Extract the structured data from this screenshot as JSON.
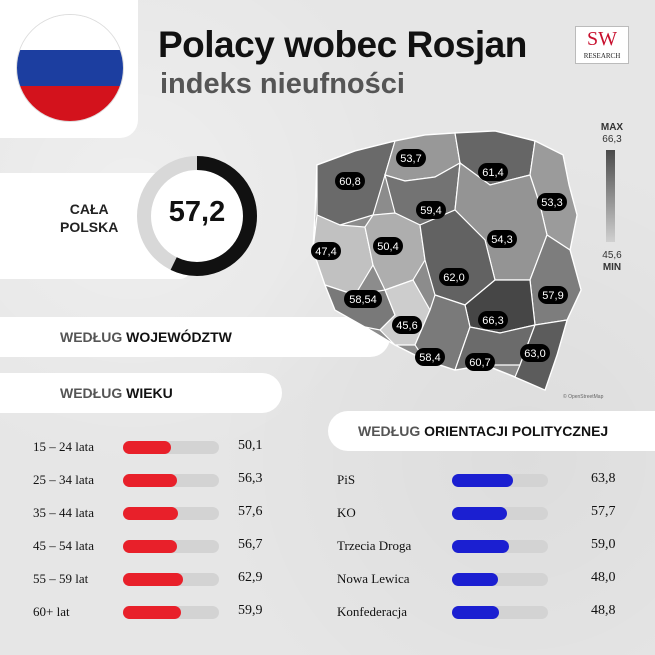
{
  "header": {
    "title": "Polacy wobec Rosjan",
    "subtitle": "indeks nieufności"
  },
  "logo": {
    "sw": "SW",
    "sub": "RESEARCH"
  },
  "colors": {
    "flag_white": "#ffffff",
    "flag_blue": "#1c3ea0",
    "flag_red": "#d3121c",
    "age_bar": "#e8202a",
    "politics_bar": "#1b1fd1",
    "track": "#d3d3d3",
    "gauge_dark": "#111111",
    "gauge_light": "#d8d8d8"
  },
  "national": {
    "label_line1": "CAŁA",
    "label_line2": "POLSKA",
    "value": "57,2",
    "value_num": 57.2
  },
  "sections": {
    "woj_prefix": "WEDŁUG",
    "woj_bold": "WOJEWÓDZTW",
    "age_prefix": "WEDŁUG",
    "age_bold": "WIEKU",
    "pol_prefix": "WEDŁUG",
    "pol_bold": "ORIENTACJI POLITYCZNEJ"
  },
  "legend": {
    "max_label": "MAX",
    "max_value": "66,3",
    "min_value": "45,6",
    "min_label": "MIN"
  },
  "map_credit": "© OpenStreetMap",
  "chart_data": [
    {
      "type": "bar",
      "title": "WEDŁUG WIEKU",
      "categories": [
        "15 – 24 lata",
        "25 – 34 lata",
        "35 – 44 lata",
        "45 – 54 lata",
        "55 – 59 lat",
        "60+ lat"
      ],
      "values": [
        50.1,
        56.3,
        57.6,
        56.7,
        62.9,
        59.9
      ],
      "labels": [
        "50,1",
        "56,3",
        "57,6",
        "56,7",
        "62,9",
        "59,9"
      ],
      "xlim": [
        0,
        100
      ]
    },
    {
      "type": "bar",
      "title": "WEDŁUG ORIENTACJI POLITYCZNEJ",
      "categories": [
        "PiS",
        "KO",
        "Trzecia Droga",
        "Nowa Lewica",
        "Konfederacja"
      ],
      "values": [
        63.8,
        57.7,
        59.0,
        48.0,
        48.8
      ],
      "labels": [
        "63,8",
        "57,7",
        "59,0",
        "48,0",
        "48,8"
      ],
      "xlim": [
        0,
        100
      ]
    },
    {
      "type": "heatmap",
      "title": "WEDŁUG WOJEWÓDZTW",
      "scale_min": 45.6,
      "scale_max": 66.3,
      "regions": [
        {
          "name": "zachodniopomorskie",
          "value": 60.8,
          "label": "60,8"
        },
        {
          "name": "pomorskie",
          "value": 53.7,
          "label": "53,7"
        },
        {
          "name": "warmińsko-mazurskie",
          "value": 61.4,
          "label": "61,4"
        },
        {
          "name": "podlaskie",
          "value": 53.3,
          "label": "53,3"
        },
        {
          "name": "kujawsko-pomorskie",
          "value": 59.4,
          "label": "59,4"
        },
        {
          "name": "lubuskie",
          "value": 47.4,
          "label": "47,4"
        },
        {
          "name": "wielkopolskie",
          "value": 50.4,
          "label": "50,4"
        },
        {
          "name": "mazowieckie",
          "value": 54.3,
          "label": "54,3"
        },
        {
          "name": "łódzkie",
          "value": 62.0,
          "label": "62,0"
        },
        {
          "name": "dolnośląskie",
          "value": 58.54,
          "label": "58,54"
        },
        {
          "name": "lubelskie",
          "value": 57.9,
          "label": "57,9"
        },
        {
          "name": "opolskie",
          "value": 45.6,
          "label": "45,6"
        },
        {
          "name": "świętokrzyskie",
          "value": 66.3,
          "label": "66,3"
        },
        {
          "name": "śląskie",
          "value": 58.4,
          "label": "58,4"
        },
        {
          "name": "małopolskie",
          "value": 60.7,
          "label": "60,7"
        },
        {
          "name": "podkarpackie",
          "value": 63.0,
          "label": "63,0"
        }
      ]
    }
  ]
}
